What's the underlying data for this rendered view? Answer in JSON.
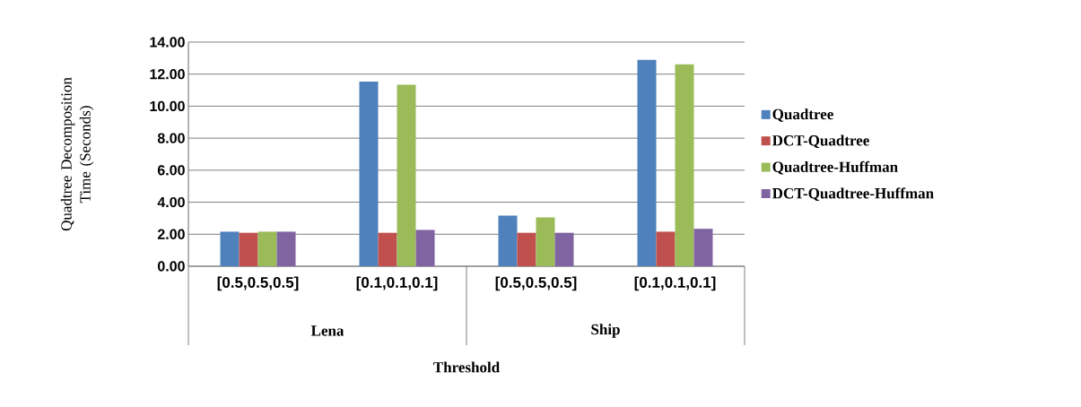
{
  "chart_data": {
    "type": "bar",
    "xlabel": "Threshold",
    "ylabel": "Quadtree Decomposition Time (Seconds)",
    "categories": [
      "[0.5,0.5,0.5]",
      "[0.1,0.1,0.1]",
      "[0.5,0.5,0.5]",
      "[0.1,0.1,0.1]"
    ],
    "annotations": [
      "Lena",
      "Ship"
    ],
    "series": [
      {
        "name": "Quadtree",
        "color": "#4f81bd",
        "values": [
          2.16,
          11.54,
          3.17,
          12.9
        ]
      },
      {
        "name": "DCT-Quadtree",
        "color": "#c0504d",
        "values": [
          2.09,
          2.09,
          2.09,
          2.16
        ]
      },
      {
        "name": "Quadtree-Huffman",
        "color": "#9bbb59",
        "values": [
          2.16,
          11.34,
          3.05,
          12.62
        ]
      },
      {
        "name": "DCT-Quadtree-Huffman",
        "color": "#8064a2",
        "values": [
          2.16,
          2.27,
          2.09,
          2.34
        ]
      }
    ],
    "ylim": [
      0,
      14
    ],
    "yticks": [
      {
        "value": 0,
        "label": "0.00"
      },
      {
        "value": 2,
        "label": "2.00"
      },
      {
        "value": 4,
        "label": "4.00"
      },
      {
        "value": 6,
        "label": "6.00"
      },
      {
        "value": 8,
        "label": "8.00"
      },
      {
        "value": 10,
        "label": "10.00"
      },
      {
        "value": 12,
        "label": "12.00"
      },
      {
        "value": 14,
        "label": "14.00"
      }
    ],
    "grid": "y",
    "legend": "right"
  }
}
